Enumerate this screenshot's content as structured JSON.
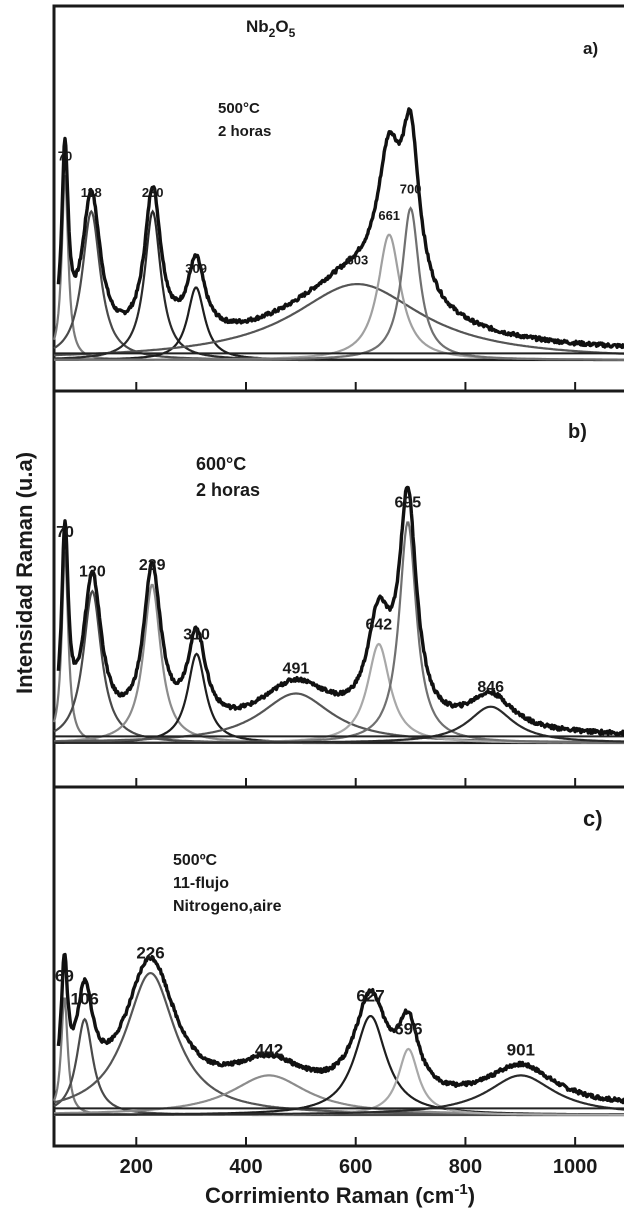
{
  "chart_data": {
    "type": "line",
    "ylabel": "Intensidad Raman  (u.a)",
    "xlabel": "Corrimiento Raman (cm",
    "xlabel_sup": "-1",
    "xlabel_close": ")",
    "xlim": [
      50,
      1100
    ],
    "xticks": [
      200,
      400,
      600,
      800,
      1000
    ],
    "xtick_labels": [
      "200",
      "400",
      "600",
      "800",
      "1000"
    ],
    "panels": [
      {
        "title_main": "Nb",
        "title_sub1": "2",
        "title_mid": "O",
        "title_sub2": "5",
        "letter": "a)",
        "annotation": [
          "500°C",
          "2 horas"
        ],
        "background": 0.02,
        "peaks": [
          {
            "label": "70",
            "center": 70,
            "height": 0.56,
            "width": 14,
            "color": "#7a7a7a"
          },
          {
            "label": "118",
            "center": 118,
            "height": 0.45,
            "width": 40,
            "color": "#4a4a4a"
          },
          {
            "label": "230",
            "center": 230,
            "height": 0.45,
            "width": 36,
            "color": "#2a2a2a"
          },
          {
            "label": "309",
            "center": 309,
            "height": 0.22,
            "width": 38,
            "color": "#1e1e1e"
          },
          {
            "label": "603",
            "center": 603,
            "height": 0.23,
            "width": 290,
            "color": "#555555"
          },
          {
            "label": "661",
            "center": 661,
            "height": 0.38,
            "width": 50,
            "color": "#a0a0a0"
          },
          {
            "label": "700",
            "center": 700,
            "height": 0.46,
            "width": 38,
            "color": "#707070"
          }
        ]
      },
      {
        "letter": "b)",
        "annotation": [
          "600°C",
          "2 horas"
        ],
        "background": 0.02,
        "peaks": [
          {
            "label": "70",
            "center": 70,
            "height": 0.58,
            "width": 14,
            "color": "#7a7a7a"
          },
          {
            "label": "120",
            "center": 120,
            "height": 0.46,
            "width": 40,
            "color": "#4a4a4a"
          },
          {
            "label": "229",
            "center": 229,
            "height": 0.48,
            "width": 38,
            "color": "#8c8c8c"
          },
          {
            "label": "310",
            "center": 310,
            "height": 0.27,
            "width": 40,
            "color": "#1e1e1e"
          },
          {
            "label": "491",
            "center": 491,
            "height": 0.15,
            "width": 160,
            "color": "#555555"
          },
          {
            "label": "642",
            "center": 642,
            "height": 0.3,
            "width": 50,
            "color": "#a8a8a8"
          },
          {
            "label": "695",
            "center": 695,
            "height": 0.67,
            "width": 38,
            "color": "#707070"
          },
          {
            "label": "846",
            "center": 846,
            "height": 0.11,
            "width": 100,
            "color": "#2a2a2a"
          }
        ]
      },
      {
        "letter": "c)",
        "annotation": [
          "500ºC",
          "11-flujo",
          "Nitrogeno,aire"
        ],
        "background": 0.02,
        "peaks": [
          {
            "label": "69",
            "center": 69,
            "height": 0.36,
            "width": 14,
            "color": "#7a7a7a"
          },
          {
            "label": "106",
            "center": 106,
            "height": 0.29,
            "width": 36,
            "color": "#4a4a4a"
          },
          {
            "label": "226",
            "center": 226,
            "height": 0.43,
            "width": 110,
            "color": "#555555"
          },
          {
            "label": "442",
            "center": 442,
            "height": 0.12,
            "width": 170,
            "color": "#8c8c8c"
          },
          {
            "label": "627",
            "center": 627,
            "height": 0.3,
            "width": 70,
            "color": "#1e1e1e"
          },
          {
            "label": "696",
            "center": 696,
            "height": 0.2,
            "width": 45,
            "color": "#a8a8a8"
          },
          {
            "label": "901",
            "center": 901,
            "height": 0.12,
            "width": 150,
            "color": "#2a2a2a"
          }
        ]
      }
    ]
  }
}
